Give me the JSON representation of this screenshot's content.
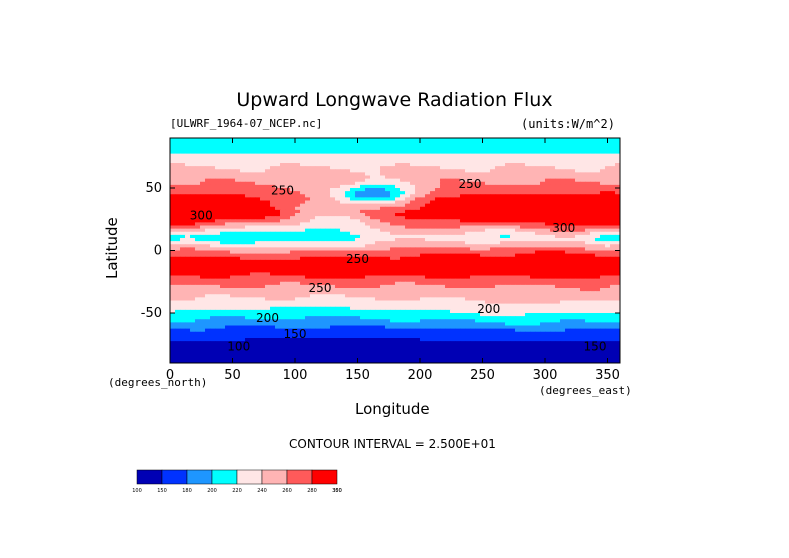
{
  "chart_data": {
    "type": "heatmap",
    "title": "Upward Longwave Radiation Flux",
    "source_label": "[ULWRF_1964-07_NCEP.nc]",
    "units_label": "(units:W/m^2)",
    "xlabel": "Longitude",
    "ylabel": "Latitude",
    "x_unit_label": "(degrees_east)",
    "y_unit_label": "(degrees_north)",
    "xlim": [
      0,
      360
    ],
    "ylim": [
      -90,
      90
    ],
    "x_ticks": [
      0,
      50,
      100,
      150,
      200,
      250,
      300,
      350
    ],
    "y_ticks": [
      -50,
      0,
      50
    ],
    "contour_interval_text": "CONTOUR INTERVAL = 2.500E+01",
    "contour_labels": [
      {
        "text": "250",
        "lon": 90,
        "lat": 45
      },
      {
        "text": "250",
        "lon": 240,
        "lat": 50
      },
      {
        "text": "300",
        "lon": 25,
        "lat": 25
      },
      {
        "text": "300",
        "lon": 315,
        "lat": 15
      },
      {
        "text": "250",
        "lon": 150,
        "lat": -10
      },
      {
        "text": "250",
        "lon": 120,
        "lat": -33
      },
      {
        "text": "200",
        "lon": 255,
        "lat": -50
      },
      {
        "text": "200",
        "lon": 78,
        "lat": -57
      },
      {
        "text": "150",
        "lon": 100,
        "lat": -70
      },
      {
        "text": "100",
        "lon": 55,
        "lat": -80
      },
      {
        "text": "150",
        "lon": 340,
        "lat": -80
      }
    ],
    "levels": [
      100,
      150,
      180,
      200,
      220,
      240,
      260,
      280,
      300,
      350
    ],
    "level_labels": [
      "100",
      "150",
      "180",
      "200",
      "220",
      "240",
      "260",
      "280",
      "300",
      "350"
    ],
    "colors": [
      "#0000b4",
      "#0032ff",
      "#1e96ff",
      "#00ffff",
      "#ffe6e6",
      "#ffb4b4",
      "#ff5a5a",
      "#ff0000"
    ],
    "lat_profile": [
      {
        "lat": 90,
        "value": 205
      },
      {
        "lat": 80,
        "value": 215
      },
      {
        "lat": 70,
        "value": 235
      },
      {
        "lat": 60,
        "value": 250
      },
      {
        "lat": 50,
        "value": 265
      },
      {
        "lat": 40,
        "value": 285
      },
      {
        "lat": 30,
        "value": 295
      },
      {
        "lat": 20,
        "value": 270
      },
      {
        "lat": 10,
        "value": 240
      },
      {
        "lat": 0,
        "value": 265
      },
      {
        "lat": -10,
        "value": 290
      },
      {
        "lat": -20,
        "value": 280
      },
      {
        "lat": -30,
        "value": 255
      },
      {
        "lat": -40,
        "value": 235
      },
      {
        "lat": -50,
        "value": 210
      },
      {
        "lat": -60,
        "value": 190
      },
      {
        "lat": -70,
        "value": 160
      },
      {
        "lat": -80,
        "value": 135
      },
      {
        "lat": -90,
        "value": 130
      }
    ],
    "anomalies": [
      {
        "lon": 165,
        "lat": 45,
        "dlon": 22,
        "dlat": 6,
        "amp": -80
      },
      {
        "lon": 130,
        "lat": 28,
        "dlon": 35,
        "dlat": 12,
        "amp": -45
      },
      {
        "lon": 45,
        "lat": 13,
        "dlon": 30,
        "dlat": 8,
        "amp": -35
      },
      {
        "lon": 110,
        "lat": 10,
        "dlon": 35,
        "dlat": 8,
        "amp": -20
      },
      {
        "lon": 265,
        "lat": 13,
        "dlon": 25,
        "dlat": 6,
        "amp": -30
      },
      {
        "lon": 350,
        "lat": 10,
        "dlon": 15,
        "dlat": 6,
        "amp": -35
      },
      {
        "lon": 30,
        "lat": 30,
        "dlon": 40,
        "dlat": 10,
        "amp": 20
      },
      {
        "lon": 340,
        "lat": 28,
        "dlon": 30,
        "dlat": 10,
        "amp": 20
      },
      {
        "lon": 250,
        "lat": 30,
        "dlon": 45,
        "dlat": 10,
        "amp": 10
      },
      {
        "lon": 140,
        "lat": -12,
        "dlon": 30,
        "dlat": 6,
        "amp": 15
      },
      {
        "lon": 245,
        "lat": -8,
        "dlon": 25,
        "dlat": 8,
        "amp": 12
      },
      {
        "lon": 330,
        "lat": -8,
        "dlon": 30,
        "dlat": 10,
        "amp": 15
      },
      {
        "lon": 290,
        "lat": -48,
        "dlon": 60,
        "dlat": 8,
        "amp": 15
      },
      {
        "lon": 120,
        "lat": -70,
        "dlon": 90,
        "dlat": 10,
        "amp": -10
      }
    ]
  }
}
